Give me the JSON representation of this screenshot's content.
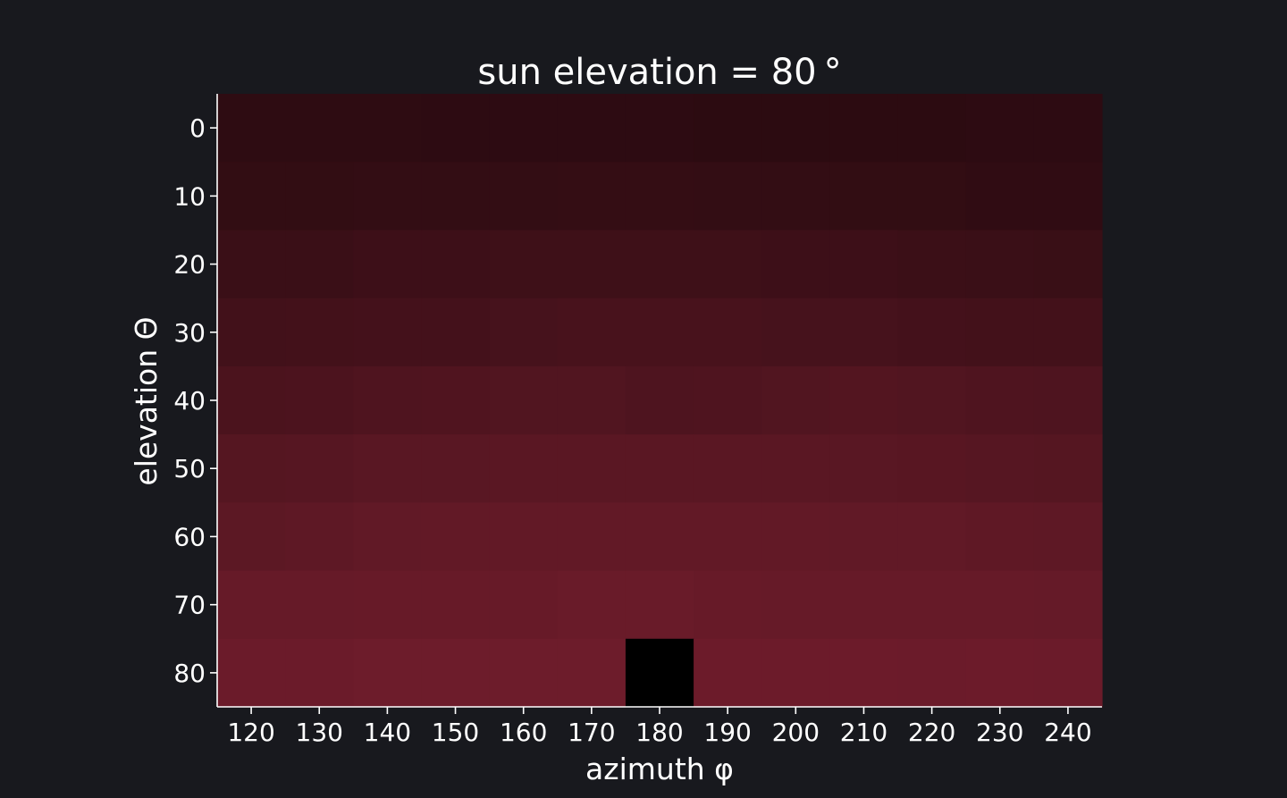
{
  "chart_data": {
    "type": "heatmap",
    "title": "sun elevation = 80$^\\circ$",
    "title_display": "sun elevation = 80 °",
    "xlabel": "azimuth φ",
    "ylabel": "elevation Θ",
    "x": [
      120,
      130,
      140,
      150,
      160,
      170,
      180,
      190,
      200,
      210,
      220,
      230,
      240
    ],
    "y": [
      0,
      10,
      20,
      30,
      40,
      50,
      60,
      70,
      80
    ],
    "x_ticks": [
      "120",
      "130",
      "140",
      "150",
      "160",
      "170",
      "180",
      "190",
      "200",
      "210",
      "220",
      "230",
      "240"
    ],
    "y_ticks": [
      "0",
      "10",
      "20",
      "30",
      "40",
      "50",
      "60",
      "70",
      "80"
    ],
    "xlim": [
      115,
      245
    ],
    "ylim": [
      85,
      -5
    ],
    "value_range": [
      0,
      1
    ],
    "colormap": [
      "#000000",
      "#6e1c2b"
    ],
    "grid": false,
    "sun_cell": {
      "x": 180,
      "y": 80,
      "color": "#000000"
    },
    "values": [
      [
        0.42,
        0.42,
        0.42,
        0.41,
        0.41,
        0.41,
        0.41,
        0.4,
        0.4,
        0.4,
        0.4,
        0.41,
        0.41
      ],
      [
        0.45,
        0.45,
        0.46,
        0.46,
        0.46,
        0.47,
        0.47,
        0.46,
        0.46,
        0.45,
        0.45,
        0.44,
        0.44
      ],
      [
        0.53,
        0.53,
        0.55,
        0.55,
        0.56,
        0.56,
        0.56,
        0.56,
        0.55,
        0.55,
        0.54,
        0.53,
        0.52
      ],
      [
        0.6,
        0.61,
        0.62,
        0.62,
        0.64,
        0.65,
        0.65,
        0.65,
        0.64,
        0.64,
        0.62,
        0.61,
        0.61
      ],
      [
        0.68,
        0.69,
        0.72,
        0.73,
        0.74,
        0.74,
        0.71,
        0.72,
        0.74,
        0.75,
        0.74,
        0.72,
        0.71
      ],
      [
        0.77,
        0.78,
        0.81,
        0.81,
        0.82,
        0.82,
        0.82,
        0.82,
        0.82,
        0.81,
        0.8,
        0.78,
        0.77
      ],
      [
        0.84,
        0.85,
        0.88,
        0.89,
        0.89,
        0.89,
        0.89,
        0.89,
        0.89,
        0.88,
        0.88,
        0.86,
        0.85
      ],
      [
        0.93,
        0.93,
        0.94,
        0.94,
        0.94,
        0.95,
        0.95,
        0.94,
        0.93,
        0.93,
        0.93,
        0.93,
        0.92
      ],
      [
        0.97,
        0.97,
        0.99,
        0.99,
        0.99,
        0.99,
        0.0,
        0.98,
        0.98,
        0.98,
        0.97,
        0.98,
        0.97
      ]
    ]
  }
}
